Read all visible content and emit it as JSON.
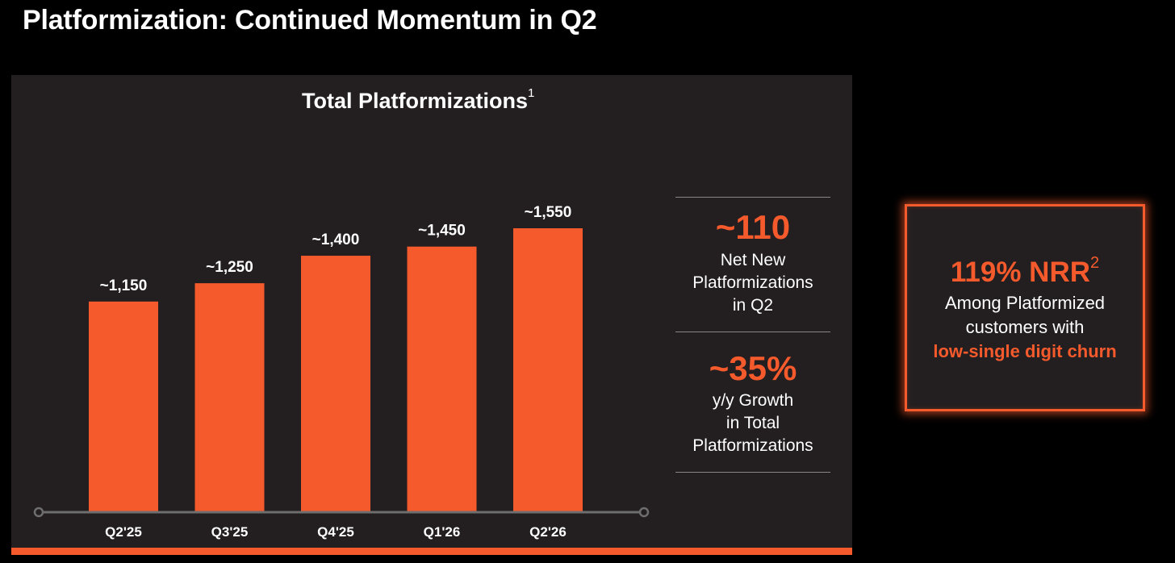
{
  "page": {
    "title": "Platformization: Continued Momentum in Q2"
  },
  "chart_data": {
    "type": "bar",
    "title": "Total Platformizations",
    "title_footnote": "1",
    "categories": [
      "Q2'25",
      "Q3'25",
      "Q4'25",
      "Q1'26",
      "Q2'26"
    ],
    "values": [
      1150,
      1250,
      1400,
      1450,
      1550
    ],
    "data_labels": [
      "~1,150",
      "~1,250",
      "~1,400",
      "~1,450",
      "~1,550"
    ],
    "xlabel": "",
    "ylabel": "",
    "ylim": [
      0,
      1550
    ],
    "grid": false,
    "bar_color": "#f55a2c"
  },
  "stats": [
    {
      "value": "~110",
      "desc": "Net New\nPlatformizations\nin Q2"
    },
    {
      "value": "~35%",
      "desc": "y/y Growth\nin Total\nPlatformizations"
    }
  ],
  "nrr": {
    "headline": "119% NRR",
    "footnote": "2",
    "line1": "Among Platformized",
    "line2": "customers with",
    "highlight": "low-single digit churn"
  },
  "colors": {
    "accent": "#f55a2c",
    "panel": "#231f20",
    "background": "#000000",
    "axis": "#6e6e6e"
  }
}
